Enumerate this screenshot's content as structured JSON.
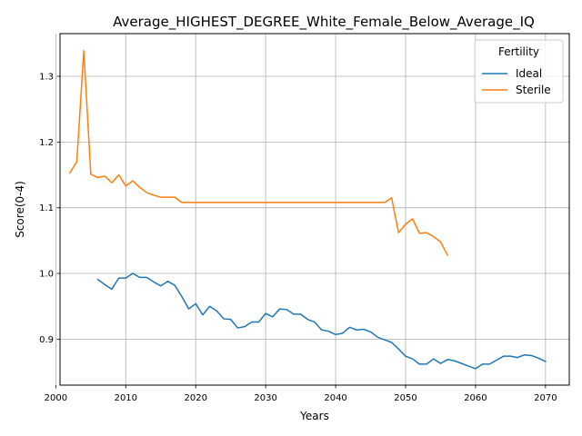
{
  "chart_data": {
    "type": "line",
    "title": "Average_HIGHEST_DEGREE_White_Female_Below_Average_IQ",
    "xlabel": "Years",
    "ylabel": "Score(0-4)",
    "xlim": [
      2000.6,
      2073.4
    ],
    "ylim": [
      0.83,
      1.365
    ],
    "xticks": [
      2000,
      2010,
      2020,
      2030,
      2040,
      2050,
      2060,
      2070
    ],
    "yticks": [
      0.9,
      1.0,
      1.1,
      1.2,
      1.3
    ],
    "xtick_labels": [
      "2000",
      "2010",
      "2020",
      "2030",
      "2040",
      "2050",
      "2060",
      "2070"
    ],
    "ytick_labels": [
      "0.9",
      "1.0",
      "1.1",
      "1.2",
      "1.3"
    ],
    "grid": true,
    "legend": {
      "title": "Fertility",
      "placement": "top-right"
    },
    "series": [
      {
        "name": "Ideal",
        "color": "#1f77b4",
        "x": [
          2006,
          2007,
          2008,
          2009,
          2010,
          2011,
          2012,
          2013,
          2014,
          2015,
          2016,
          2017,
          2018,
          2019,
          2020,
          2021,
          2022,
          2023,
          2024,
          2025,
          2026,
          2027,
          2028,
          2029,
          2030,
          2031,
          2032,
          2033,
          2034,
          2035,
          2036,
          2037,
          2038,
          2039,
          2040,
          2041,
          2042,
          2043,
          2044,
          2045,
          2046,
          2047,
          2048,
          2049,
          2050,
          2051,
          2052,
          2053,
          2054,
          2055,
          2056,
          2057,
          2058,
          2059,
          2060,
          2061,
          2062,
          2063,
          2064,
          2065,
          2066,
          2067,
          2068,
          2069,
          2070
        ],
        "values": [
          0.991,
          0.983,
          0.976,
          0.993,
          0.993,
          1.0,
          0.994,
          0.994,
          0.987,
          0.981,
          0.988,
          0.982,
          0.965,
          0.946,
          0.954,
          0.937,
          0.95,
          0.943,
          0.931,
          0.93,
          0.917,
          0.919,
          0.926,
          0.926,
          0.939,
          0.934,
          0.946,
          0.945,
          0.938,
          0.938,
          0.93,
          0.926,
          0.914,
          0.912,
          0.907,
          0.909,
          0.918,
          0.914,
          0.915,
          0.911,
          0.903,
          0.899,
          0.895,
          0.885,
          0.874,
          0.87,
          0.862,
          0.862,
          0.87,
          0.863,
          0.869,
          0.867,
          0.863,
          0.859,
          0.855,
          0.862,
          0.862,
          0.868,
          0.874,
          0.874,
          0.872,
          0.876,
          0.875,
          0.871,
          0.866
        ]
      },
      {
        "name": "Sterile",
        "color": "#ff7f0e",
        "x": [
          2002,
          2003,
          2004,
          2005,
          2006,
          2007,
          2008,
          2009,
          2010,
          2011,
          2012,
          2013,
          2014,
          2015,
          2016,
          2017,
          2018,
          2019,
          2020,
          2021,
          2022,
          2023,
          2024,
          2025,
          2026,
          2027,
          2028,
          2029,
          2030,
          2031,
          2032,
          2033,
          2034,
          2035,
          2036,
          2037,
          2038,
          2039,
          2040,
          2041,
          2042,
          2043,
          2044,
          2045,
          2046,
          2047,
          2048,
          2049,
          2050,
          2051,
          2052,
          2053,
          2054,
          2055,
          2056
        ],
        "values": [
          1.153,
          1.17,
          1.339,
          1.151,
          1.146,
          1.148,
          1.138,
          1.15,
          1.133,
          1.141,
          1.131,
          1.123,
          1.119,
          1.116,
          1.116,
          1.116,
          1.108,
          1.108,
          1.108,
          1.108,
          1.108,
          1.108,
          1.108,
          1.108,
          1.108,
          1.108,
          1.108,
          1.108,
          1.108,
          1.108,
          1.108,
          1.108,
          1.108,
          1.108,
          1.108,
          1.108,
          1.108,
          1.108,
          1.108,
          1.108,
          1.108,
          1.108,
          1.108,
          1.108,
          1.108,
          1.108,
          1.115,
          1.062,
          1.075,
          1.083,
          1.061,
          1.062,
          1.056,
          1.048,
          1.028
        ]
      }
    ]
  }
}
